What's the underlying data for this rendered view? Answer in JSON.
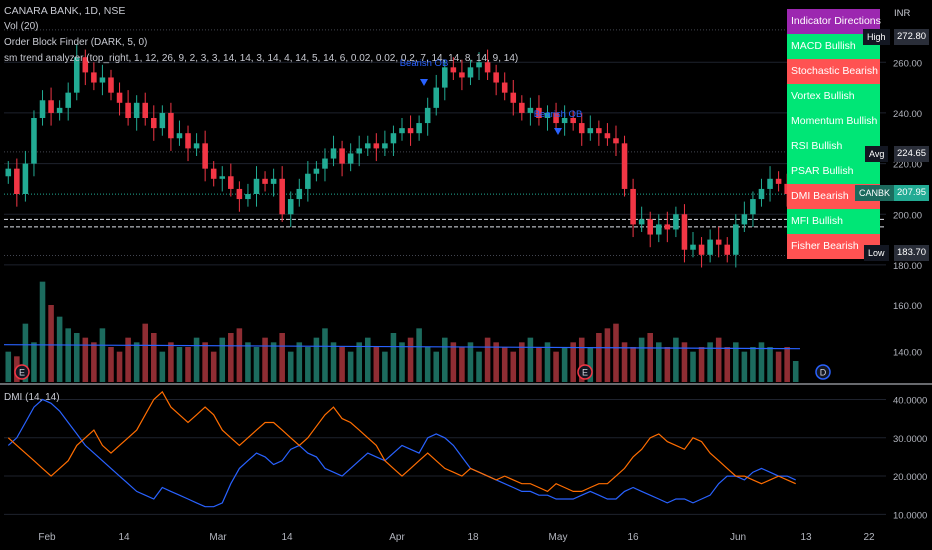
{
  "header": {
    "title": "CANARA BANK, 1D, NSE",
    "currency": "INR",
    "indicators": [
      "Vol (20)",
      "Order Block Finder (DARK, 5, 0)",
      "sm trend analyzer (top_right, 1, 12, 26, 9, 2, 3, 3, 14, 14, 3, 14, 4, 14, 5, 14, 6, 0.02, 0.02, 0.2, 7, 14, 14, 8, 14, 9, 14)"
    ],
    "dmi_label": "DMI (14, 14)"
  },
  "colors": {
    "bull": "#22ab94",
    "bear": "#f23645",
    "bull_vol": "#1c6b5e",
    "bear_vol": "#8f2d33",
    "table_header": "#9c27b0",
    "table_bull": "#00e676",
    "table_bear": "#ff5252",
    "di_plus": "#2962ff",
    "di_minus": "#ff6d00"
  },
  "indicator_table": {
    "header": "Indicator Directions",
    "rows": [
      {
        "label": "MACD Bullish",
        "bullish": true
      },
      {
        "label": "Stochastic Bearish",
        "bullish": false
      },
      {
        "label": "Vortex Bullish",
        "bullish": true
      },
      {
        "label": "Momentum Bullish",
        "bullish": true
      },
      {
        "label": "RSI Bullish",
        "bullish": true
      },
      {
        "label": "PSAR Bullish",
        "bullish": true
      },
      {
        "label": "DMI Bearish",
        "bullish": false
      },
      {
        "label": "MFI Bullish",
        "bullish": true
      },
      {
        "label": "Fisher Bearish",
        "bullish": false
      }
    ]
  },
  "price_tags": {
    "high": {
      "label": "High",
      "value": "272.80"
    },
    "avg": {
      "label": "Avg",
      "value": "224.65"
    },
    "last": {
      "label": "CANBK",
      "value": "207.95"
    },
    "low": {
      "label": "Low",
      "value": "183.70"
    }
  },
  "annotations": {
    "bearish_ob_1": "Bearish OB",
    "bearish_ob_2": "Bearish OB",
    "events": [
      "E",
      "E",
      "D"
    ]
  },
  "chart_data": [
    {
      "type": "candlestick",
      "title": "CANARA BANK, 1D, NSE",
      "ylim": [
        178,
        283
      ],
      "price_ticks": [
        "260.00",
        "240.00",
        "220.00",
        "200.00",
        "180.00"
      ],
      "x_ticks": [
        "Feb",
        "14",
        "Mar",
        "14",
        "Apr",
        "18",
        "May",
        "16",
        "Jun",
        "13",
        "22"
      ],
      "closes": [
        218,
        208,
        220,
        238,
        245,
        240,
        242,
        248,
        262,
        256,
        252,
        254,
        248,
        244,
        238,
        244,
        238,
        234,
        240,
        230,
        232,
        226,
        228,
        218,
        214,
        215,
        210,
        206,
        208,
        214,
        212,
        214,
        200,
        206,
        210,
        216,
        218,
        222,
        226,
        220,
        224,
        226,
        228,
        226,
        228,
        232,
        234,
        232,
        236,
        242,
        250,
        258,
        256,
        254,
        258,
        260,
        256,
        252,
        248,
        244,
        240,
        242,
        238,
        240,
        236,
        238,
        236,
        232,
        234,
        232,
        230,
        228,
        210,
        196,
        198,
        192,
        196,
        194,
        200,
        186,
        188,
        184,
        190,
        188,
        184,
        196,
        200,
        206,
        210,
        214,
        212,
        208,
        210
      ],
      "high": 272.8,
      "avg": 224.65,
      "last": 207.95,
      "low": 183.7,
      "levels": [
        198,
        195
      ]
    },
    {
      "type": "bar",
      "title": "Vol (20)",
      "ylim": [
        127,
        175
      ],
      "y_ticks": [
        "160.00",
        "140.00"
      ],
      "values": [
        140,
        138,
        152,
        144,
        170,
        160,
        155,
        150,
        148,
        146,
        144,
        150,
        142,
        140,
        146,
        144,
        152,
        148,
        140,
        144,
        142,
        142,
        146,
        144,
        140,
        146,
        148,
        150,
        144,
        142,
        146,
        144,
        148,
        140,
        144,
        142,
        146,
        150,
        144,
        142,
        140,
        144,
        146,
        142,
        140,
        148,
        144,
        146,
        150,
        142,
        140,
        146,
        144,
        142,
        144,
        140,
        146,
        144,
        142,
        140,
        144,
        146,
        142,
        144,
        140,
        142,
        144,
        146,
        142,
        148,
        150,
        152,
        144,
        142,
        146,
        148,
        144,
        142,
        146,
        144,
        140,
        142,
        144,
        146,
        142,
        144,
        140,
        142,
        144,
        142,
        140,
        142,
        136
      ],
      "ma": 143
    },
    {
      "type": "line",
      "title": "DMI (14, 14)",
      "ylim": [
        8,
        43
      ],
      "y_ticks": [
        "40.0000",
        "30.0000",
        "20.0000",
        "10.0000"
      ],
      "series": [
        {
          "name": "+DI",
          "values": [
            28,
            30,
            34,
            38,
            40,
            39,
            37,
            34,
            31,
            28,
            26,
            24,
            22,
            20,
            18,
            16,
            15,
            14,
            17,
            16,
            15,
            14,
            13,
            12,
            12,
            13,
            18,
            22,
            24,
            26,
            25,
            23,
            24,
            27,
            28,
            26,
            25,
            22,
            21,
            20,
            22,
            24,
            26,
            25,
            24,
            26,
            28,
            27,
            26,
            30,
            31,
            30,
            28,
            25,
            22,
            21,
            20,
            19,
            18,
            17,
            16,
            16,
            15,
            15,
            14,
            14,
            14,
            15,
            16,
            15,
            14,
            14,
            16,
            17,
            16,
            15,
            14,
            13,
            14,
            14,
            13,
            14,
            15,
            18,
            20,
            20,
            19,
            21,
            22,
            21,
            20,
            20,
            19
          ]
        },
        {
          "name": "-DI",
          "values": [
            30,
            28,
            26,
            24,
            22,
            20,
            22,
            24,
            28,
            30,
            32,
            28,
            26,
            28,
            30,
            32,
            36,
            40,
            42,
            38,
            36,
            34,
            36,
            38,
            36,
            32,
            30,
            28,
            30,
            32,
            34,
            34,
            32,
            30,
            28,
            30,
            33,
            36,
            38,
            35,
            34,
            32,
            30,
            28,
            24,
            22,
            20,
            22,
            24,
            26,
            24,
            22,
            21,
            20,
            22,
            21,
            20,
            19,
            20,
            19,
            18,
            18,
            17,
            16,
            18,
            17,
            16,
            16,
            17,
            18,
            18,
            20,
            22,
            25,
            27,
            30,
            31,
            29,
            28,
            27,
            30,
            29,
            26,
            24,
            22,
            20,
            20,
            19,
            18,
            19,
            20,
            19,
            18
          ]
        }
      ]
    }
  ]
}
